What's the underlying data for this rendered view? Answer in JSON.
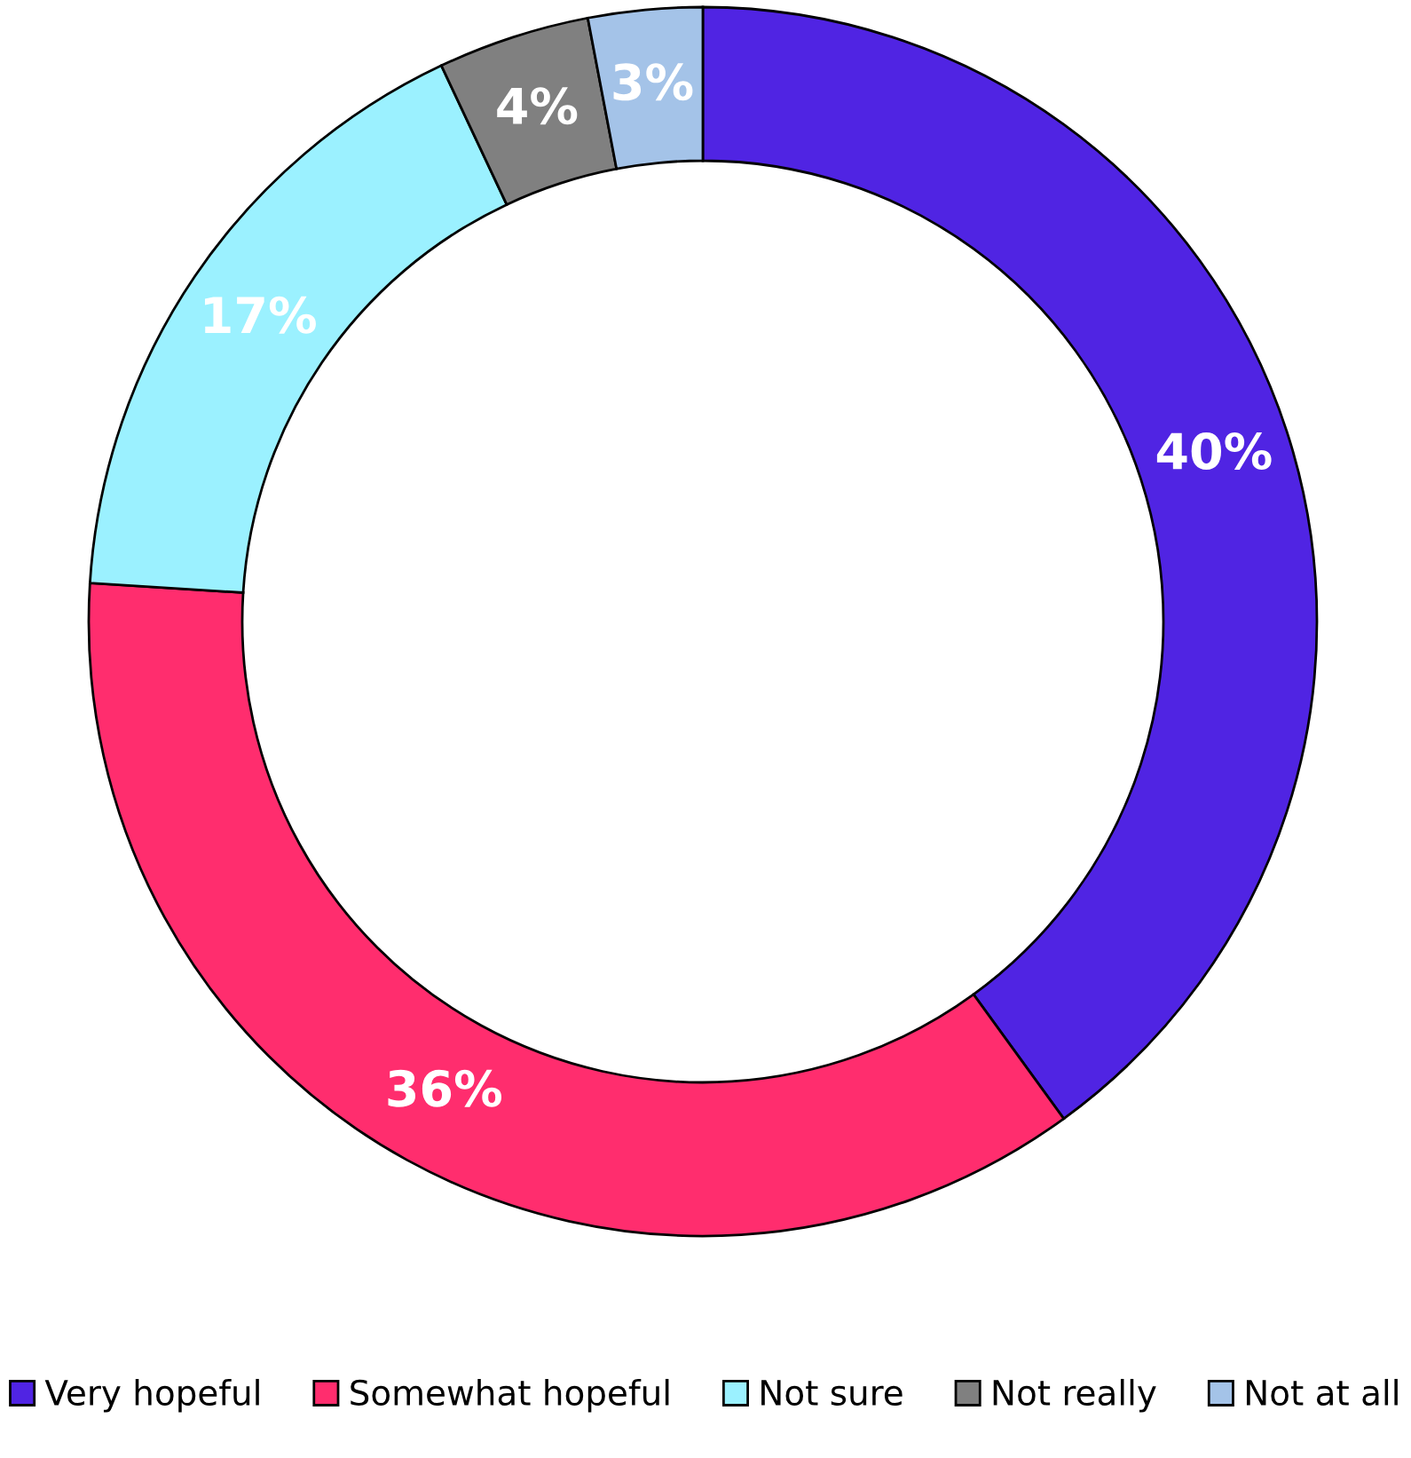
{
  "chart_data": {
    "type": "donut",
    "categories": [
      "Very hopeful",
      "Somewhat hopeful",
      "Not sure",
      "Not really",
      "Not at all"
    ],
    "values": [
      40,
      36,
      17,
      4,
      3
    ],
    "colors": [
      "#5024e3",
      "#ff2d6e",
      "#9bf1ff",
      "#808080",
      "#a4c3e8"
    ],
    "value_labels": [
      "40%",
      "36%",
      "17%",
      "4%",
      "3%"
    ],
    "legend": "bottom"
  }
}
